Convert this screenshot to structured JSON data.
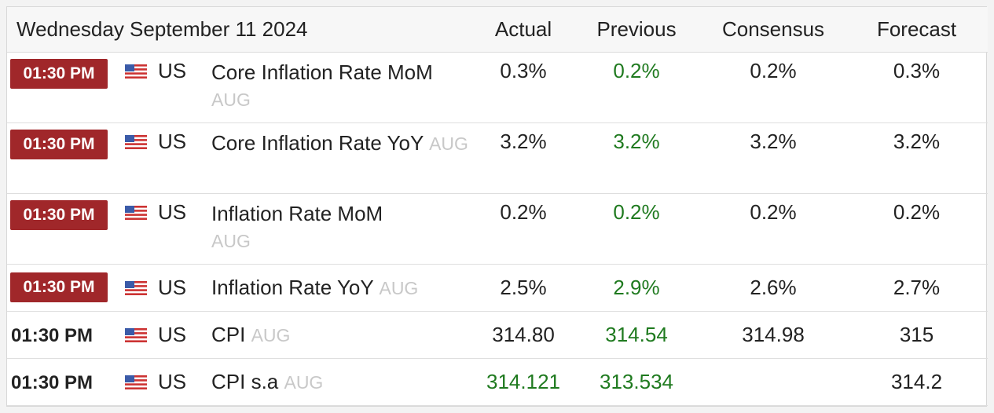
{
  "header": {
    "date": "Wednesday September 11 2024",
    "actual": "Actual",
    "previous": "Previous",
    "consensus": "Consensus",
    "forecast": "Forecast"
  },
  "rows": [
    {
      "time": "01:30 PM",
      "country": "US",
      "event": "Core Inflation Rate MoM",
      "period": "AUG",
      "actual": "0.3%",
      "previous": "0.2%",
      "consensus": "0.2%",
      "forecast": "0.3%"
    },
    {
      "time": "01:30 PM",
      "country": "US",
      "event": "Core Inflation Rate YoY",
      "period": "AUG",
      "actual": "3.2%",
      "previous": "3.2%",
      "consensus": "3.2%",
      "forecast": "3.2%"
    },
    {
      "time": "01:30 PM",
      "country": "US",
      "event": "Inflation Rate MoM",
      "period": "AUG",
      "actual": "0.2%",
      "previous": "0.2%",
      "consensus": "0.2%",
      "forecast": "0.2%"
    },
    {
      "time": "01:30 PM",
      "country": "US",
      "event": "Inflation Rate YoY",
      "period": "AUG",
      "actual": "2.5%",
      "previous": "2.9%",
      "consensus": "2.6%",
      "forecast": "2.7%"
    },
    {
      "time": "01:30 PM",
      "country": "US",
      "event": "CPI",
      "period": "AUG",
      "actual": "314.80",
      "previous": "314.54",
      "consensus": "314.98",
      "forecast": "315"
    },
    {
      "time": "01:30 PM",
      "country": "US",
      "event": "CPI s.a",
      "period": "AUG",
      "actual": "314.121",
      "previous": "313.534",
      "consensus": "",
      "forecast": "314.2"
    }
  ],
  "colors": {
    "time_badge": "#a0272a",
    "positive": "#1f7a1f",
    "muted": "#c8c8c8"
  },
  "icons": {
    "flag": "us-flag-icon"
  }
}
